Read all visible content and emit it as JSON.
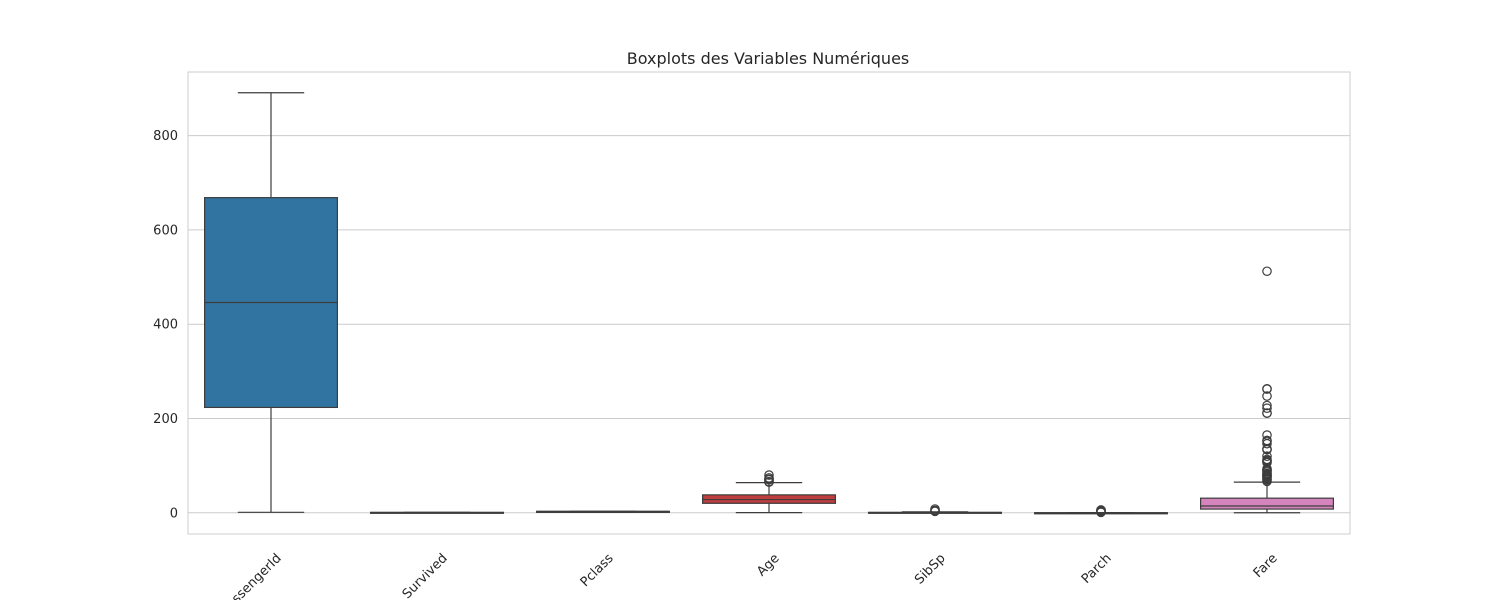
{
  "chart_data": {
    "type": "boxplot",
    "title": "Boxplots des Variables Numériques",
    "xlabel": "",
    "ylabel": "",
    "ylim": [
      -45,
      935
    ],
    "yticks": [
      0,
      200,
      400,
      600,
      800
    ],
    "grid": true,
    "categories": [
      "PassengerId",
      "Survived",
      "Pclass",
      "Age",
      "SibSp",
      "Parch",
      "Fare"
    ],
    "boxes": [
      {
        "category": "PassengerId",
        "color": "#3274a1",
        "whisker_low": 1,
        "q1": 223.5,
        "median": 446,
        "q3": 668.5,
        "whisker_high": 891,
        "outliers": []
      },
      {
        "category": "Survived",
        "color": "#e1812c",
        "whisker_low": 0,
        "q1": 0,
        "median": 0,
        "q3": 1,
        "whisker_high": 1,
        "outliers": []
      },
      {
        "category": "Pclass",
        "color": "#3a923a",
        "whisker_low": 1,
        "q1": 2,
        "median": 3,
        "q3": 3,
        "whisker_high": 3,
        "outliers": []
      },
      {
        "category": "Age",
        "color": "#c03d3e",
        "whisker_low": 0.42,
        "q1": 20.1,
        "median": 28,
        "q3": 38,
        "whisker_high": 64,
        "outliers": [
          65,
          66,
          70,
          70.5,
          71,
          74,
          80
        ]
      },
      {
        "category": "SibSp",
        "color": "#9372b2",
        "whisker_low": 0,
        "q1": 0,
        "median": 0,
        "q3": 1,
        "whisker_high": 2,
        "outliers": [
          3,
          4,
          5,
          8
        ]
      },
      {
        "category": "Parch",
        "color": "#845b53",
        "whisker_low": 0,
        "q1": 0,
        "median": 0,
        "q3": 0,
        "whisker_high": 0,
        "outliers": [
          1,
          2,
          3,
          4,
          5,
          6
        ]
      },
      {
        "category": "Fare",
        "color": "#d684bd",
        "whisker_low": 0,
        "q1": 7.9,
        "median": 14.45,
        "q3": 31,
        "whisker_high": 65,
        "outliers": [
          66.6,
          69.55,
          71.28,
          73.5,
          76.29,
          77.96,
          79.2,
          80,
          82.17,
          83.16,
          86.5,
          89.1,
          90,
          91.08,
          93.5,
          106.43,
          108.9,
          110.88,
          113.28,
          120,
          133.65,
          134.5,
          135.63,
          146.52,
          151.55,
          153.46,
          164.87,
          211.34,
          211.5,
          221.78,
          227.53,
          247.52,
          262.38,
          263,
          512.33
        ]
      }
    ]
  }
}
